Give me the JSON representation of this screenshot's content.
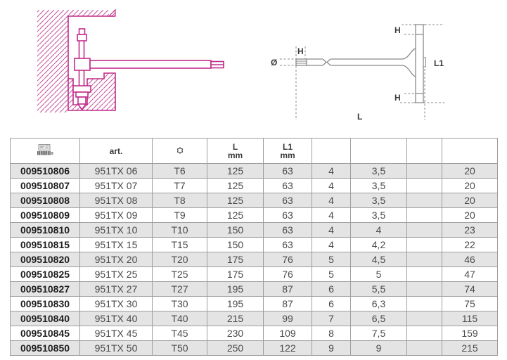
{
  "colors": {
    "magenta": "#c12b8a",
    "drawing_gray": "#8a8a8a",
    "table_border": "#9e9e9e",
    "row_alt_bg": "#e4e4e4",
    "code_text": "#1f1f1f",
    "value_text": "#4a4a4a"
  },
  "diagrams": {
    "usage_drawing": "wall-corner-application-drawing",
    "dimension_drawing": "t-handle-dimension-drawing",
    "labels": {
      "h_tip": "H",
      "diameter": "Ø",
      "h_top": "H",
      "h_bottom": "H",
      "l1": "L1",
      "l": "L"
    }
  },
  "table": {
    "col_names": [
      "code",
      "art",
      "size",
      "l-mm",
      "l1-mm",
      "col6",
      "col7",
      "col8",
      "col9"
    ],
    "headers": [
      {
        "type": "icon",
        "icon": "barcode-icon",
        "label": ""
      },
      {
        "type": "text",
        "label": "art."
      },
      {
        "type": "icon",
        "icon": "torx-icon",
        "label": ""
      },
      {
        "type": "text2",
        "line1": "L",
        "line2": "mm"
      },
      {
        "type": "text2",
        "line1": "L1",
        "line2": "mm"
      },
      {
        "type": "empty",
        "label": ""
      },
      {
        "type": "empty",
        "label": ""
      },
      {
        "type": "empty",
        "label": ""
      },
      {
        "type": "empty",
        "label": ""
      }
    ],
    "rows": [
      [
        "009510806",
        "951TX 06",
        "T6",
        "125",
        "63",
        "4",
        "3,5",
        "",
        "20"
      ],
      [
        "009510807",
        "951TX 07",
        "T7",
        "125",
        "63",
        "4",
        "3,5",
        "",
        "20"
      ],
      [
        "009510808",
        "951TX 08",
        "T8",
        "125",
        "63",
        "4",
        "3,5",
        "",
        "20"
      ],
      [
        "009510809",
        "951TX 09",
        "T9",
        "125",
        "63",
        "4",
        "3,5",
        "",
        "20"
      ],
      [
        "009510810",
        "951TX 10",
        "T10",
        "150",
        "63",
        "4",
        "4",
        "",
        "23"
      ],
      [
        "009510815",
        "951TX 15",
        "T15",
        "150",
        "63",
        "4",
        "4,2",
        "",
        "22"
      ],
      [
        "009510820",
        "951TX 20",
        "T20",
        "175",
        "76",
        "5",
        "4,5",
        "",
        "46"
      ],
      [
        "009510825",
        "951TX 25",
        "T25",
        "175",
        "76",
        "5",
        "5",
        "",
        "47"
      ],
      [
        "009510827",
        "951TX 27",
        "T27",
        "195",
        "87",
        "6",
        "5,5",
        "",
        "74"
      ],
      [
        "009510830",
        "951TX 30",
        "T30",
        "195",
        "87",
        "6",
        "6,3",
        "",
        "75"
      ],
      [
        "009510840",
        "951TX 40",
        "T40",
        "215",
        "99",
        "7",
        "6,5",
        "",
        "115"
      ],
      [
        "009510845",
        "951TX 45",
        "T45",
        "230",
        "109",
        "8",
        "7,5",
        "",
        "159"
      ],
      [
        "009510850",
        "951TX 50",
        "T50",
        "250",
        "122",
        "9",
        "9",
        "",
        "215"
      ]
    ]
  }
}
